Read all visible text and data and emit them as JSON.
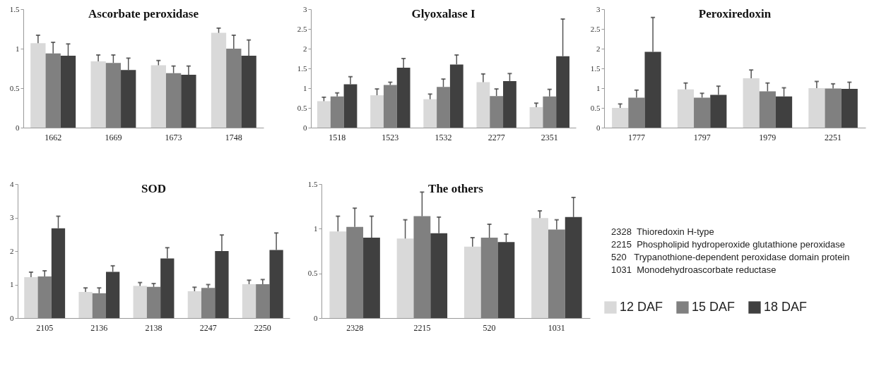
{
  "chart_data": [
    {
      "type": "bar",
      "title": "Ascorbate peroxidase",
      "categories": [
        "1662",
        "1669",
        "1673",
        "1748"
      ],
      "ylim": [
        0,
        1.5
      ],
      "yticks": [
        0,
        0.5,
        1,
        1.5
      ],
      "grid": false,
      "legend": false,
      "series": [
        {
          "color": "#d9d9d9",
          "values": [
            1.07,
            0.84,
            0.79,
            1.2
          ],
          "errors": [
            [
              1.07,
              1.17
            ],
            [
              0.84,
              0.92
            ],
            [
              0.79,
              0.85
            ],
            [
              1.2,
              1.26
            ]
          ]
        },
        {
          "color": "#808080",
          "values": [
            0.94,
            0.82,
            0.69,
            1.0
          ],
          "errors": [
            [
              0.94,
              1.08
            ],
            [
              0.82,
              0.92
            ],
            [
              0.69,
              0.78
            ],
            [
              1.0,
              1.17
            ]
          ]
        },
        {
          "color": "#404040",
          "values": [
            0.91,
            0.73,
            0.67,
            0.91
          ],
          "errors": [
            [
              0.91,
              1.06
            ],
            [
              0.73,
              0.88
            ],
            [
              0.67,
              0.78
            ],
            [
              0.91,
              1.11
            ]
          ]
        }
      ]
    },
    {
      "type": "bar",
      "title": "Glyoxalase I",
      "categories": [
        "1518",
        "1523",
        "1532",
        "2277",
        "2351"
      ],
      "ylim": [
        0,
        3
      ],
      "yticks": [
        0,
        0.5,
        1,
        1.5,
        2,
        2.5,
        3
      ],
      "grid": false,
      "legend": false,
      "series": [
        {
          "color": "#d9d9d9",
          "values": [
            0.67,
            0.82,
            0.72,
            1.15,
            0.52
          ],
          "errors": [
            [
              0.67,
              0.77
            ],
            [
              0.82,
              0.98
            ],
            [
              0.72,
              0.85
            ],
            [
              1.15,
              1.36
            ],
            [
              0.52,
              0.62
            ]
          ]
        },
        {
          "color": "#808080",
          "values": [
            0.79,
            1.08,
            1.03,
            0.8,
            0.79
          ],
          "errors": [
            [
              0.79,
              0.88
            ],
            [
              1.08,
              1.15
            ],
            [
              1.03,
              1.23
            ],
            [
              0.8,
              0.98
            ],
            [
              0.79,
              0.97
            ]
          ]
        },
        {
          "color": "#404040",
          "values": [
            1.1,
            1.52,
            1.6,
            1.18,
            1.81
          ],
          "errors": [
            [
              1.1,
              1.29
            ],
            [
              1.52,
              1.75
            ],
            [
              1.6,
              1.84
            ],
            [
              1.18,
              1.37
            ],
            [
              1.81,
              2.75
            ]
          ]
        }
      ]
    },
    {
      "type": "bar",
      "title": "Peroxiredoxin",
      "categories": [
        "1777",
        "1797",
        "1979",
        "2251"
      ],
      "ylim": [
        0,
        3
      ],
      "yticks": [
        0,
        0.5,
        1,
        1.5,
        2,
        2.5,
        3
      ],
      "grid": false,
      "legend": false,
      "series": [
        {
          "color": "#d9d9d9",
          "values": [
            0.5,
            0.97,
            1.25,
            1.0
          ],
          "errors": [
            [
              0.5,
              0.6
            ],
            [
              0.97,
              1.13
            ],
            [
              1.25,
              1.46
            ],
            [
              1.0,
              1.17
            ]
          ]
        },
        {
          "color": "#808080",
          "values": [
            0.76,
            0.76,
            0.92,
            0.99
          ],
          "errors": [
            [
              0.76,
              0.95
            ],
            [
              0.76,
              0.87
            ],
            [
              0.92,
              1.13
            ],
            [
              0.99,
              1.11
            ]
          ]
        },
        {
          "color": "#404040",
          "values": [
            1.92,
            0.83,
            0.79,
            0.98
          ],
          "errors": [
            [
              1.92,
              2.79
            ],
            [
              0.83,
              1.05
            ],
            [
              0.79,
              1.01
            ],
            [
              0.98,
              1.15
            ]
          ]
        }
      ]
    },
    {
      "type": "bar",
      "title": "SOD",
      "categories": [
        "2105",
        "2136",
        "2138",
        "2247",
        "2250"
      ],
      "ylim": [
        0,
        4
      ],
      "yticks": [
        0,
        1,
        2,
        3,
        4
      ],
      "grid": false,
      "legend": false,
      "series": [
        {
          "color": "#d9d9d9",
          "values": [
            1.22,
            0.78,
            0.96,
            0.8,
            1.01
          ],
          "errors": [
            [
              1.22,
              1.37
            ],
            [
              0.78,
              0.9
            ],
            [
              0.96,
              1.06
            ],
            [
              0.8,
              0.92
            ],
            [
              1.01,
              1.13
            ]
          ]
        },
        {
          "color": "#808080",
          "values": [
            1.24,
            0.74,
            0.93,
            0.9,
            1.01
          ],
          "errors": [
            [
              1.24,
              1.41
            ],
            [
              0.74,
              0.9
            ],
            [
              0.93,
              1.03
            ],
            [
              0.9,
              1.0
            ],
            [
              1.01,
              1.15
            ]
          ]
        },
        {
          "color": "#404040",
          "values": [
            2.68,
            1.38,
            1.78,
            2.0,
            2.03
          ],
          "errors": [
            [
              2.68,
              3.04
            ],
            [
              1.38,
              1.56
            ],
            [
              1.78,
              2.1
            ],
            [
              2.0,
              2.48
            ],
            [
              2.03,
              2.54
            ]
          ]
        }
      ]
    },
    {
      "type": "bar",
      "title": "The others",
      "categories": [
        "2328",
        "2215",
        "520",
        "1031"
      ],
      "ylim": [
        0,
        1.5
      ],
      "yticks": [
        0,
        0.5,
        1,
        1.5
      ],
      "grid": false,
      "legend": "right",
      "annotations": [
        "2328  Thioredoxin H-type",
        "2215  Phospholipid hydroperoxide glutathione peroxidase",
        "520   Trypanothione-dependent peroxidase domain protein",
        "1031  Monodehydroascorbate reductase"
      ],
      "series": [
        {
          "name": "12 DAF",
          "color": "#d9d9d9",
          "values": [
            0.97,
            0.89,
            0.8,
            1.12
          ],
          "errors": [
            [
              0.97,
              1.14
            ],
            [
              0.89,
              1.1
            ],
            [
              0.8,
              0.9
            ],
            [
              1.12,
              1.2
            ]
          ]
        },
        {
          "name": "15 DAF",
          "color": "#808080",
          "values": [
            1.02,
            1.14,
            0.9,
            0.99
          ],
          "errors": [
            [
              1.02,
              1.23
            ],
            [
              1.14,
              1.41
            ],
            [
              0.9,
              1.05
            ],
            [
              0.99,
              1.1
            ]
          ]
        },
        {
          "name": "18 DAF",
          "color": "#404040",
          "values": [
            0.9,
            0.95,
            0.85,
            1.13
          ],
          "errors": [
            [
              0.9,
              1.14
            ],
            [
              0.95,
              1.13
            ],
            [
              0.85,
              0.94
            ],
            [
              1.13,
              1.35
            ]
          ]
        }
      ]
    }
  ]
}
